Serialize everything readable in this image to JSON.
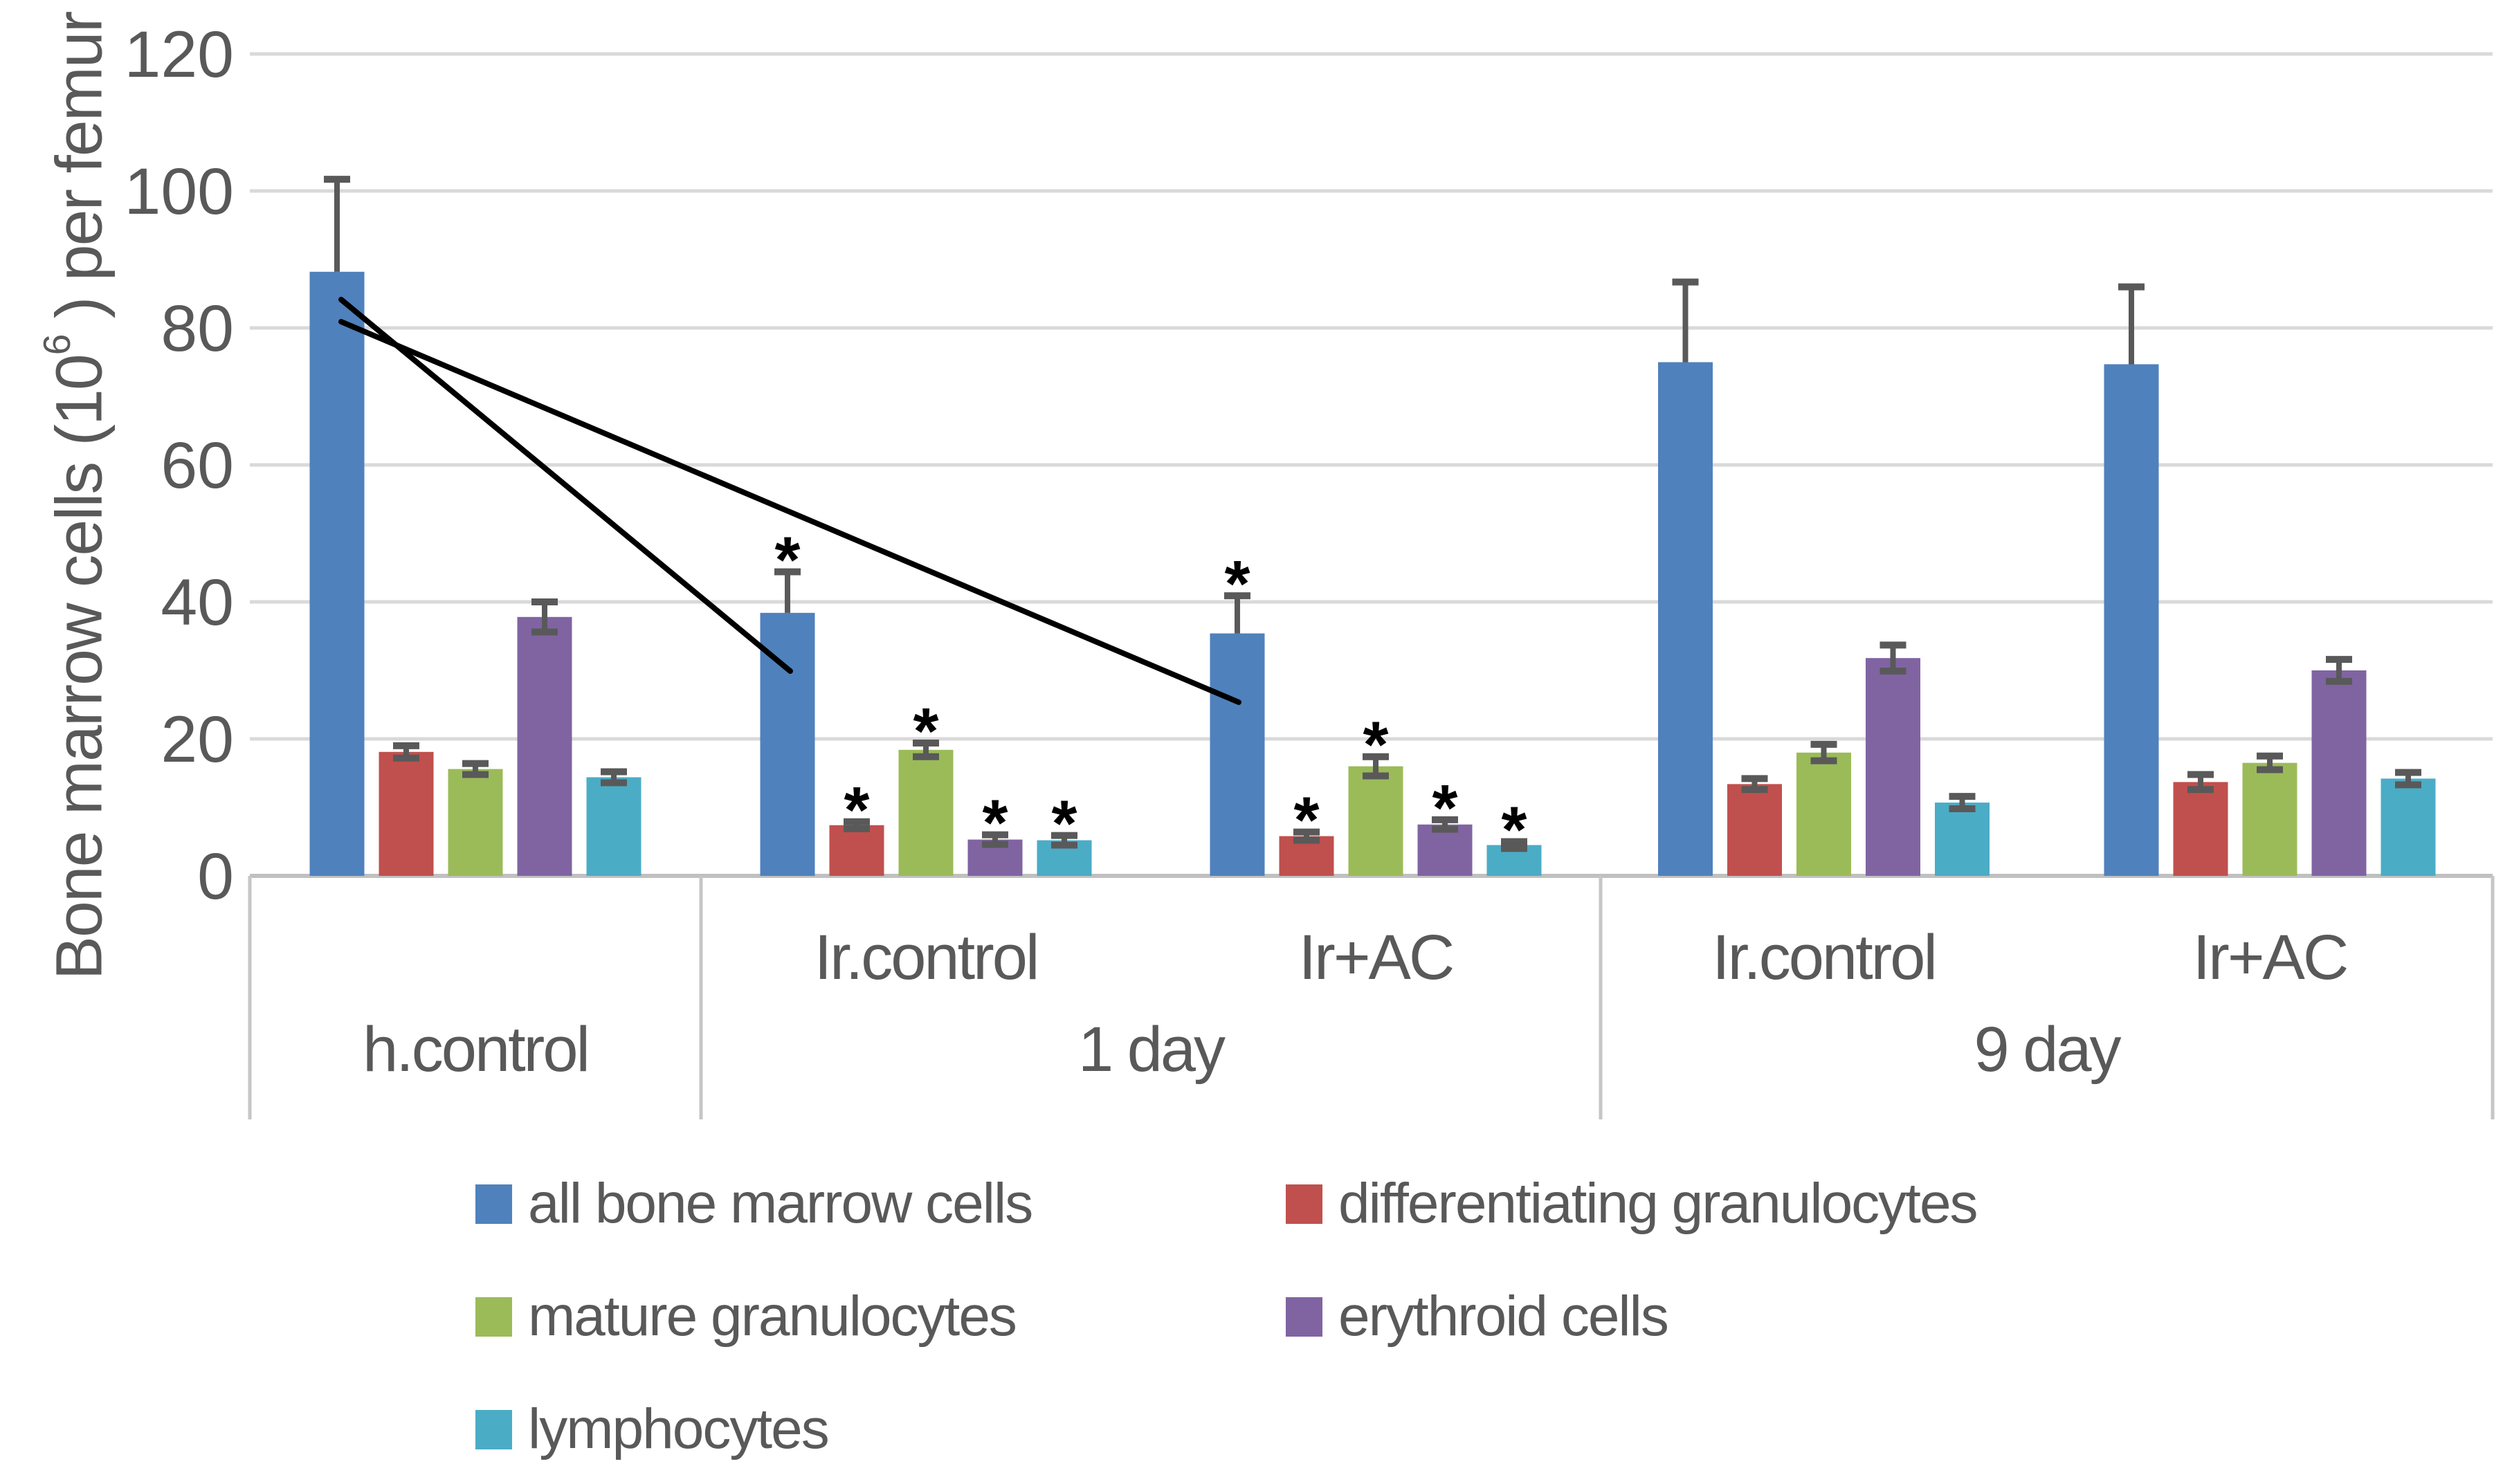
{
  "chart_data": {
    "type": "bar",
    "title": "",
    "y_axis": {
      "title_pre": "Bone marrow cells (10",
      "title_sup": "6",
      "title_post": " ) per femur",
      "min": 0,
      "max": 120,
      "step": 20,
      "tick_labels": [
        "0",
        "20",
        "40",
        "60",
        "80",
        "100",
        "120"
      ],
      "grid": true
    },
    "x_axis": {
      "sub_labels": [
        "",
        "Ir.control",
        "Ir+AC",
        "Ir.control",
        "Ir+AC"
      ],
      "sections": [
        {
          "label": "h.control",
          "from": 0,
          "to": 1
        },
        {
          "label": "1  day",
          "from": 1,
          "to": 3
        },
        {
          "label": "9 day",
          "from": 3,
          "to": 5
        }
      ]
    },
    "series": [
      {
        "name": "all bone marrow cells",
        "color": "#4F81BD",
        "values": [
          88.2,
          38.4,
          35.4,
          75.0,
          74.7
        ],
        "errors": [
          13.5,
          6.0,
          5.5,
          11.7,
          11.3
        ],
        "error_style": "plus"
      },
      {
        "name": "differentiating granulocytes",
        "color": "#C0504D",
        "values": [
          18.1,
          7.4,
          5.8,
          13.4,
          13.7
        ],
        "errors": [
          0.9,
          0.5,
          0.6,
          0.8,
          1.1
        ],
        "error_style": "plusminus"
      },
      {
        "name": "mature granulocytes",
        "color": "#9BBB59",
        "values": [
          15.6,
          18.4,
          16.0,
          18.0,
          16.5
        ],
        "errors": [
          0.8,
          1.0,
          1.4,
          1.2,
          1.0
        ],
        "error_style": "plusminus"
      },
      {
        "name": "erythroid cells",
        "color": "#8064A2",
        "values": [
          37.8,
          5.3,
          7.5,
          31.8,
          30.0
        ],
        "errors": [
          2.2,
          0.7,
          0.7,
          1.9,
          1.6
        ],
        "error_style": "plusminus"
      },
      {
        "name": "lymphocytes",
        "color": "#4BACC6",
        "values": [
          14.4,
          5.2,
          4.5,
          10.7,
          14.2
        ],
        "errors": [
          0.8,
          0.7,
          0.5,
          0.9,
          0.9
        ],
        "error_style": "plusminus"
      }
    ],
    "significance": {
      "marker": "*",
      "marked_groups": [
        {
          "group": 1,
          "series": [
            0,
            1,
            2,
            3,
            4
          ]
        },
        {
          "group": 2,
          "series": [
            0,
            1,
            2,
            3,
            4
          ]
        }
      ]
    },
    "annotation_lines": [
      {
        "x1": 493,
        "y1": 433,
        "x2": 1142,
        "y2": 970
      },
      {
        "x1": 493,
        "y1": 465,
        "x2": 1790,
        "y2": 1015
      }
    ],
    "legend_position": "bottom"
  },
  "style_colors": {
    "text": "#595959",
    "gridline": "#D9D9D9",
    "axis_line": "#C0C0C0",
    "table_border": "#C6C6C6",
    "error_bar": "#595959",
    "annotation": "#000000",
    "background": "#FFFFFF"
  }
}
